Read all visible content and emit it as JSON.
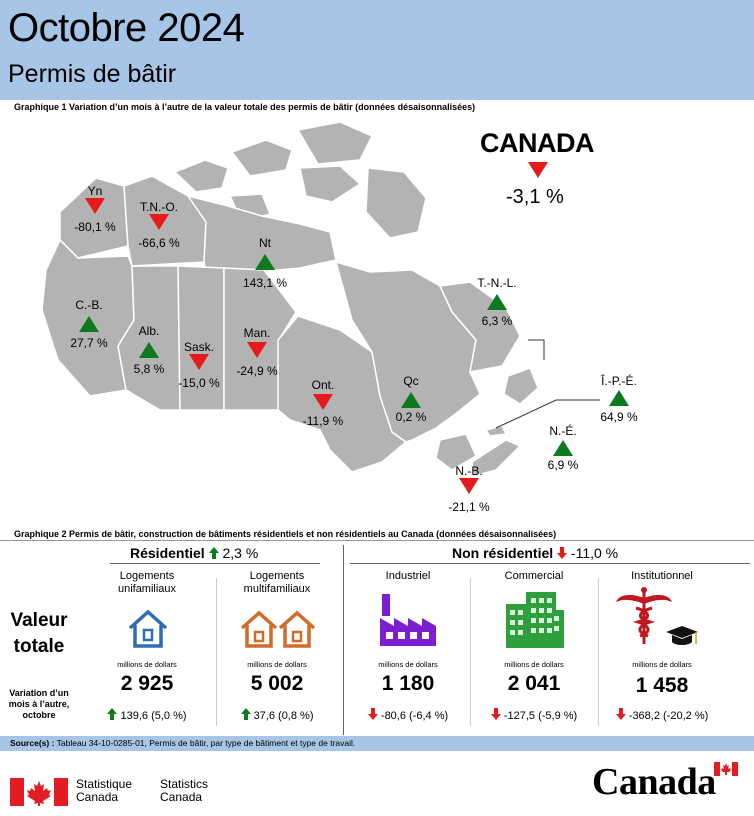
{
  "header": {
    "title": "Octobre 2024",
    "subtitle": "Permis de bâtir"
  },
  "graph1": {
    "title": "Graphique 1  Variation d’un mois à l’autre de la valeur totale des permis de bâtir (données désaisonnalisées)",
    "canada_label": "CANADA",
    "canada_value": "-3,1 %",
    "canada_direction": "down",
    "provinces": [
      {
        "name": "Yn",
        "value": "-80,1 %",
        "direction": "down"
      },
      {
        "name": "T.N.-O.",
        "value": "-66,6 %",
        "direction": "down"
      },
      {
        "name": "Nt",
        "value": "143,1 %",
        "direction": "up"
      },
      {
        "name": "C.-B.",
        "value": "27,7 %",
        "direction": "up"
      },
      {
        "name": "Alb.",
        "value": "5,8 %",
        "direction": "up"
      },
      {
        "name": "Sask.",
        "value": "-15,0 %",
        "direction": "down"
      },
      {
        "name": "Man.",
        "value": "-24,9 %",
        "direction": "down"
      },
      {
        "name": "Ont.",
        "value": "-11,9 %",
        "direction": "down"
      },
      {
        "name": "Qc",
        "value": "0,2 %",
        "direction": "up"
      },
      {
        "name": "T.-N.-L.",
        "value": "6,3 %",
        "direction": "up"
      },
      {
        "name": "Î.-P.-É.",
        "value": "64,9 %",
        "direction": "up"
      },
      {
        "name": "N.-É.",
        "value": "6,9 %",
        "direction": "up"
      },
      {
        "name": "N.-B.",
        "value": "-21,1 %",
        "direction": "down"
      }
    ],
    "colors": {
      "up": "#0c7a1d",
      "down": "#e51b1b",
      "land": "#b3b3b3",
      "border": "#ffffff"
    }
  },
  "graph2": {
    "title": "Graphique 2  Permis de bâtir, construction de bâtiments résidentiels et non résidentiels au Canada (données désaisonnalisées)",
    "residential": {
      "label": "Résidentiel",
      "change": "2,3 %",
      "direction": "up"
    },
    "nonresidential": {
      "label": "Non résidentiel",
      "change": "-11,0 %",
      "direction": "down"
    },
    "row_valeur": "Valeur totale",
    "row_variation": "Variation d’un mois à l’autre, octobre",
    "columns": [
      {
        "name": "Logements unifamiliaux",
        "unit": "millions de dollars",
        "value": "2 925",
        "change": "139,6 (5,0 %)",
        "direction": "up",
        "icon": "house-icon"
      },
      {
        "name": "Logements multifamiliaux",
        "unit": "millions de dollars",
        "value": "5 002",
        "change": "37,6 (0,8 %)",
        "direction": "up",
        "icon": "houses-icon"
      },
      {
        "name": "Industriel",
        "unit": "millions de dollars",
        "value": "1 180",
        "change": "-80,6 (-6,4 %)",
        "direction": "down",
        "icon": "factory-icon"
      },
      {
        "name": "Commercial",
        "unit": "millions de dollars",
        "value": "2 041",
        "change": "-127,5 (-5,9 %)",
        "direction": "down",
        "icon": "office-building-icon"
      },
      {
        "name": "Institutionnel",
        "unit": "millions de dollars",
        "value": "1 458",
        "change": "-368,2 (-20,2 %)",
        "direction": "down",
        "icon": "caduceus-graduation-icon"
      }
    ]
  },
  "source": {
    "label": "Source(s) :",
    "text": "Tableau 34-10-0285-01, Permis de bâtir, par type de bâtiment et type de travail."
  },
  "footer": {
    "org_fr_1": "Statistique",
    "org_fr_2": "Canada",
    "org_en_1": "Statistics",
    "org_en_2": "Canada",
    "wordmark": "Canada"
  }
}
